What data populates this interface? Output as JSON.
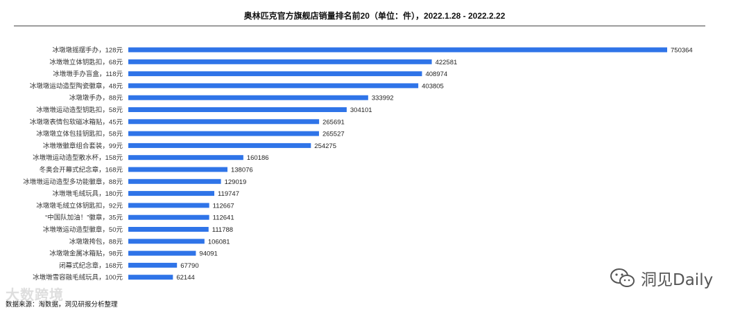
{
  "title": "奥林匹克官方旗舰店销量排名前20（单位：件），2022.1.28 - 2022.2.22",
  "source": "数据来源：淘数据，洞见研报分析整理",
  "watermark_left": "大数跨境",
  "brand": {
    "name": "洞见Daily",
    "icon": "wechat-icon"
  },
  "colors": {
    "bar": "#2f74e8"
  },
  "chart_data": {
    "type": "bar",
    "orientation": "horizontal",
    "title": "奥林匹克官方旗舰店销量排名前20（单位：件），2022.1.28 - 2022.2.22",
    "xlabel": "",
    "ylabel": "",
    "grid": false,
    "categories": [
      "冰墩墩摇摆手办，128元",
      "冰墩墩立体钥匙扣，68元",
      "冰墩墩手办盲盒，118元",
      "冰墩墩运动造型陶瓷徽章，48元",
      "冰墩墩手办，88元",
      "冰墩墩运动造型钥匙扣，58元",
      "冰墩墩表情包软磁冰箱贴，45元",
      "冰墩墩立体包挂钥匙扣，58元",
      "冰墩墩徽章组合套装，99元",
      "冰墩墩运动造型散水杯，158元",
      "冬奥会开幕式纪念章，168元",
      "冰墩墩运动造型多功能徽章，88元",
      "冰墩墩毛绒玩具，180元",
      "冰墩墩毛绒立体钥匙扣，92元",
      "“中国队加油！”徽章，35元",
      "冰墩墩运动造型徽章，50元",
      "冰墩墩挎包，88元",
      "冰墩墩金属冰箱贴，98元",
      "闭幕式纪念章，168元",
      "冰墩墩雪容融毛绒玩具，100元"
    ],
    "values": [
      750364,
      422581,
      408974,
      403805,
      333992,
      304101,
      265691,
      265527,
      254275,
      160186,
      138076,
      129019,
      119747,
      112667,
      112641,
      111788,
      106081,
      94091,
      67790,
      62144
    ],
    "xlim": [
      0,
      750364
    ]
  }
}
